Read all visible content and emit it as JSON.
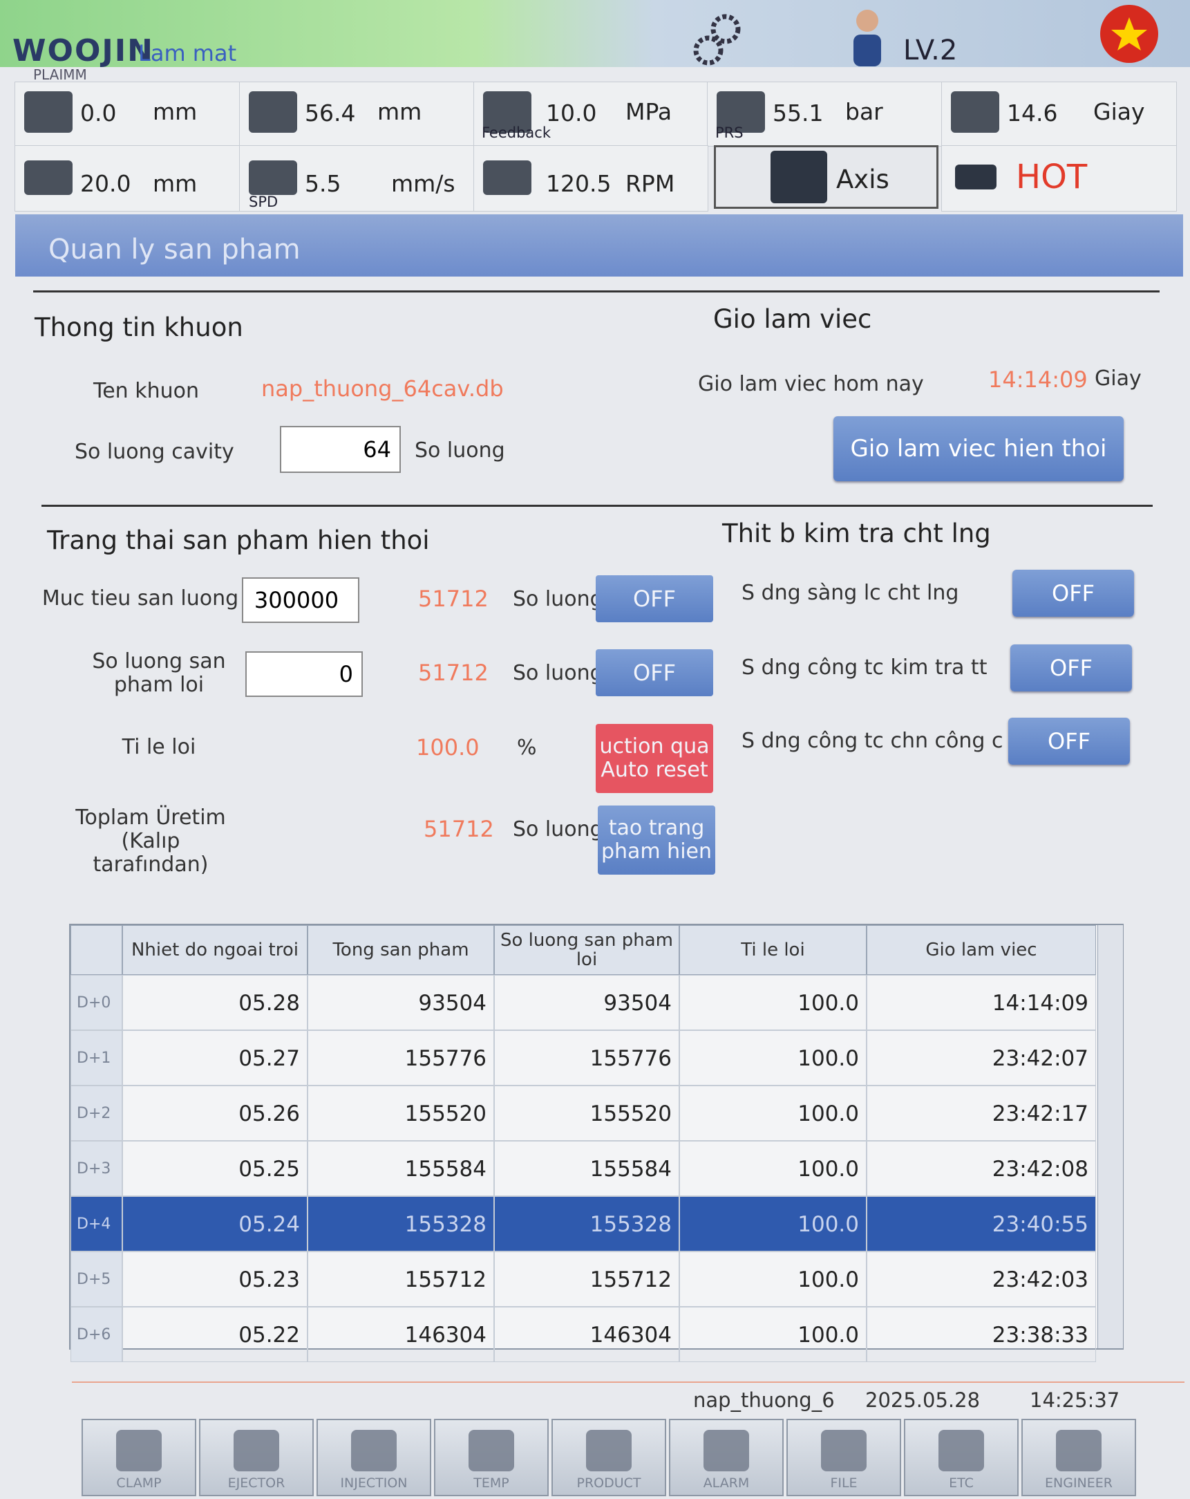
{
  "header": {
    "logo": "WOOJIN",
    "logo_sub": "PLAIMM",
    "mode": "Lam mat",
    "level": "LV.2"
  },
  "status": {
    "row1": [
      {
        "value": "0.0",
        "unit": "mm"
      },
      {
        "value": "56.4",
        "unit": "mm"
      },
      {
        "value": "10.0",
        "unit": "MPa",
        "label": "Feedback"
      },
      {
        "value": "55.1",
        "unit": "bar",
        "label": "PRS"
      },
      {
        "value": "14.6",
        "unit": "Giay"
      }
    ],
    "row2": [
      {
        "value": "20.0",
        "unit": "mm"
      },
      {
        "value": "5.5",
        "unit": "mm/s",
        "label": "SPD"
      },
      {
        "value": "120.5",
        "unit": "RPM"
      }
    ],
    "axis_button": "Axis",
    "heater": "HOT"
  },
  "section_title": "Quan ly san pham",
  "mold": {
    "heading": "Thong tin khuon",
    "name_label": "Ten khuon",
    "name_value": "nap_thuong_64cav.db",
    "cavity_label": "So luong cavity",
    "cavity_value": "64",
    "cavity_unit": "So luong"
  },
  "work": {
    "heading": "Gio lam viec",
    "today_label": "Gio lam viec hom nay",
    "today_value": "14:14:09",
    "today_unit": "Giay",
    "button": "Gio lam viec hien thoi"
  },
  "product": {
    "heading": "Trang thai san pham hien thoi",
    "rows": [
      {
        "label": "Muc tieu san luong",
        "input": "300000",
        "count": "51712",
        "unit": "So luong",
        "button": [
          "OFF"
        ]
      },
      {
        "label": "So luong san pham loi",
        "input": "0",
        "count": "51712",
        "unit": "So luong",
        "button": [
          "OFF"
        ]
      },
      {
        "label": "Ti le loi",
        "count": "100.0",
        "unit": "%",
        "button": [
          "uction qua",
          "Auto reset"
        ]
      },
      {
        "label": "Toplam Üretim (Kalıp tarafından)",
        "count": "51712",
        "unit": "So luong",
        "button": [
          "tao trang",
          "pham hien"
        ]
      }
    ]
  },
  "quality": {
    "heading": "Thit b kim tra cht lng",
    "items": [
      {
        "label": "S dng sàng lc cht lng",
        "button": "OFF"
      },
      {
        "label": "S dng công tc kim tra tt",
        "button": "OFF"
      },
      {
        "label": "S dng công tc chn công c ch",
        "button": "OFF"
      }
    ]
  },
  "table": {
    "headers": [
      "Nhiet do ngoai troi",
      "Tong san pham",
      "So luong san pham loi",
      "Ti le loi",
      "Gio lam viec"
    ],
    "selected_row": 4,
    "rows": [
      [
        "D+0",
        "05.28",
        "93504",
        "93504",
        "100.0",
        "14:14:09"
      ],
      [
        "D+1",
        "05.27",
        "155776",
        "155776",
        "100.0",
        "23:42:07"
      ],
      [
        "D+2",
        "05.26",
        "155520",
        "155520",
        "100.0",
        "23:42:17"
      ],
      [
        "D+3",
        "05.25",
        "155584",
        "155584",
        "100.0",
        "23:42:08"
      ],
      [
        "D+4",
        "05.24",
        "155328",
        "155328",
        "100.0",
        "23:40:55"
      ],
      [
        "D+5",
        "05.23",
        "155712",
        "155712",
        "100.0",
        "23:42:03"
      ],
      [
        "D+6",
        "05.22",
        "146304",
        "146304",
        "100.0",
        "23:38:33"
      ]
    ]
  },
  "footer": {
    "mold": "nap_thuong_6",
    "date": "2025.05.28",
    "time": "14:25:37"
  },
  "nav": [
    "CLAMP",
    "EJECTOR",
    "INJECTION",
    "TEMP",
    "PRODUCT",
    "ALARM",
    "FILE",
    "ETC",
    "ENGINEER"
  ]
}
